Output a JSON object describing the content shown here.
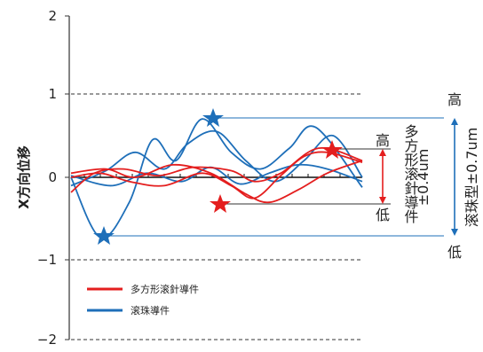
{
  "chart_data": {
    "type": "line",
    "ylabel": "X方向位移",
    "ylim": [
      -2,
      2
    ],
    "y_ticks": [
      "2",
      "1",
      "0",
      "−1",
      "−2"
    ],
    "grid": "dashed horizontal lines at ±1 and −2",
    "legend_position": "bottom-left",
    "series": [
      {
        "name": "多方形滚針導件",
        "color": "#e41e1e",
        "lines": [
          [
            [
              0,
              -0.18
            ],
            [
              0.08,
              0.05
            ],
            [
              0.18,
              0.1
            ],
            [
              0.3,
              0.02
            ],
            [
              0.42,
              0.12
            ],
            [
              0.55,
              0.08
            ],
            [
              0.63,
              -0.05
            ],
            [
              0.72,
              0.05
            ],
            [
              0.85,
              0.35
            ],
            [
              1.0,
              0.2
            ]
          ],
          [
            [
              0,
              0.0
            ],
            [
              0.1,
              0.05
            ],
            [
              0.2,
              -0.05
            ],
            [
              0.32,
              -0.1
            ],
            [
              0.45,
              0.05
            ],
            [
              0.55,
              -0.1
            ],
            [
              0.63,
              -0.25
            ],
            [
              0.72,
              0.02
            ],
            [
              0.8,
              0.25
            ],
            [
              0.88,
              0.3
            ],
            [
              1.0,
              0.18
            ]
          ],
          [
            [
              0,
              0.05
            ],
            [
              0.12,
              0.1
            ],
            [
              0.22,
              0.0
            ],
            [
              0.35,
              0.15
            ],
            [
              0.48,
              0.05
            ],
            [
              0.6,
              -0.2
            ],
            [
              0.68,
              -0.3
            ],
            [
              0.78,
              -0.15
            ],
            [
              0.88,
              0.05
            ],
            [
              1.0,
              0.2
            ]
          ]
        ],
        "peak": 0.33,
        "trough": -0.28
      },
      {
        "name": "滚珠導件",
        "color": "#1e6fb9",
        "lines": [
          [
            [
              0,
              0.0
            ],
            [
              0.1,
              -0.72
            ],
            [
              0.2,
              -0.3
            ],
            [
              0.28,
              0.45
            ],
            [
              0.36,
              0.2
            ],
            [
              0.45,
              0.7
            ],
            [
              0.55,
              0.3
            ],
            [
              0.65,
              0.1
            ],
            [
              0.75,
              0.35
            ],
            [
              0.84,
              0.6
            ],
            [
              1.0,
              -0.12
            ]
          ],
          [
            [
              0,
              -0.1
            ],
            [
              0.12,
              0.08
            ],
            [
              0.22,
              0.3
            ],
            [
              0.32,
              0.1
            ],
            [
              0.4,
              0.4
            ],
            [
              0.5,
              0.55
            ],
            [
              0.6,
              0.2
            ],
            [
              0.7,
              -0.05
            ],
            [
              0.8,
              0.2
            ],
            [
              0.9,
              0.5
            ],
            [
              1.0,
              0.0
            ]
          ],
          [
            [
              0,
              0.02
            ],
            [
              0.14,
              -0.1
            ],
            [
              0.26,
              0.05
            ],
            [
              0.38,
              -0.05
            ],
            [
              0.48,
              0.12
            ],
            [
              0.58,
              -0.08
            ],
            [
              0.68,
              0.05
            ],
            [
              0.78,
              0.15
            ],
            [
              0.88,
              0.1
            ],
            [
              1.0,
              -0.05
            ]
          ]
        ],
        "peak": 0.7,
        "trough": -0.7
      }
    ],
    "annotations": {
      "red_high": "高",
      "red_low": "低",
      "red_range": "多方形滚針導件",
      "red_value": "±0.4um",
      "blue_high": "高",
      "blue_low": "低",
      "blue_range": "滚珠型±0.7um"
    }
  }
}
